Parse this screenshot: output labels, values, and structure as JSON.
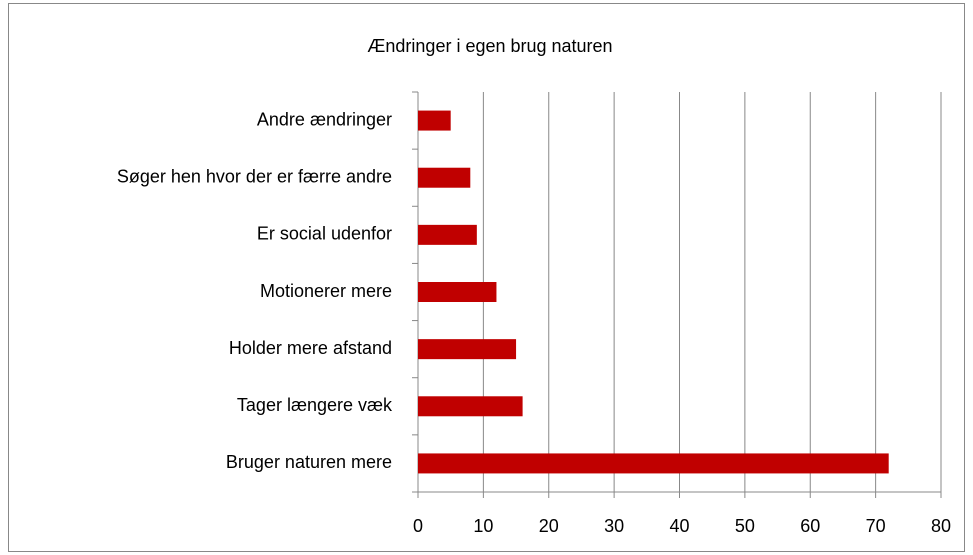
{
  "chart_data": {
    "type": "hbar",
    "title": "Ændringer i egen brug naturen",
    "categories": [
      "Andre ændringer",
      "Søger hen hvor der er færre andre",
      "Er social udenfor",
      "Motionerer mere",
      "Holder mere afstand",
      "Tager længere væk",
      "Bruger naturen mere"
    ],
    "values": [
      5,
      8,
      9,
      12,
      15,
      16,
      72
    ],
    "color": "#c00000",
    "xlim": [
      0,
      80
    ],
    "xticks": [
      0,
      10,
      20,
      30,
      40,
      50,
      60,
      70,
      80
    ],
    "grid": true
  }
}
